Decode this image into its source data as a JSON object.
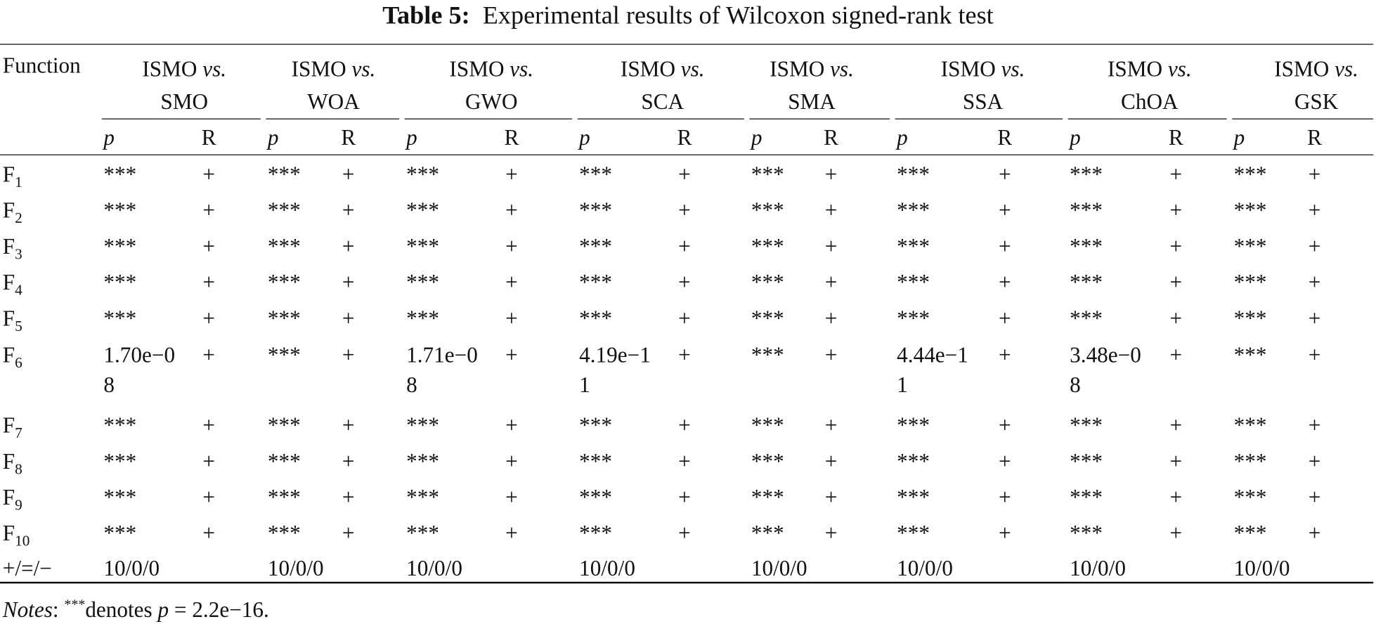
{
  "caption": {
    "label": "Table 5:",
    "text": "Experimental results of Wilcoxon signed-rank test"
  },
  "header": {
    "function": "Function",
    "groups": [
      {
        "first": "ISMO",
        "vs": "vs.",
        "second": "SMO"
      },
      {
        "first": "ISMO",
        "vs": "vs.",
        "second": "WOA"
      },
      {
        "first": "ISMO",
        "vs": "vs.",
        "second": "GWO"
      },
      {
        "first": "ISMO",
        "vs": "vs.",
        "second": "SCA"
      },
      {
        "first": "ISMO",
        "vs": "vs.",
        "second": "SMA"
      },
      {
        "first": "ISMO",
        "vs": "vs.",
        "second": "SSA"
      },
      {
        "first": "ISMO",
        "vs": "vs.",
        "second": "ChOA"
      },
      {
        "first": "ISMO",
        "vs": "vs.",
        "second": "GSK"
      }
    ],
    "sub": [
      [
        "p",
        "R"
      ],
      [
        "p",
        "R"
      ],
      [
        "p",
        "R"
      ],
      [
        "p",
        "R"
      ],
      [
        "p",
        "R"
      ],
      [
        "p",
        "R"
      ],
      [
        "p",
        "R"
      ],
      [
        "p",
        "R"
      ]
    ]
  },
  "rows": [
    {
      "base": "F",
      "sub": "1",
      "cells": [
        [
          "***",
          "+"
        ],
        [
          "***",
          "+"
        ],
        [
          "***",
          "+"
        ],
        [
          "***",
          "+"
        ],
        [
          "***",
          "+"
        ],
        [
          "***",
          "+"
        ],
        [
          "***",
          "+"
        ],
        [
          "***",
          "+"
        ]
      ]
    },
    {
      "base": "F",
      "sub": "2",
      "cells": [
        [
          "***",
          "+"
        ],
        [
          "***",
          "+"
        ],
        [
          "***",
          "+"
        ],
        [
          "***",
          "+"
        ],
        [
          "***",
          "+"
        ],
        [
          "***",
          "+"
        ],
        [
          "***",
          "+"
        ],
        [
          "***",
          "+"
        ]
      ]
    },
    {
      "base": "F",
      "sub": "3",
      "cells": [
        [
          "***",
          "+"
        ],
        [
          "***",
          "+"
        ],
        [
          "***",
          "+"
        ],
        [
          "***",
          "+"
        ],
        [
          "***",
          "+"
        ],
        [
          "***",
          "+"
        ],
        [
          "***",
          "+"
        ],
        [
          "***",
          "+"
        ]
      ]
    },
    {
      "base": "F",
      "sub": "4",
      "cells": [
        [
          "***",
          "+"
        ],
        [
          "***",
          "+"
        ],
        [
          "***",
          "+"
        ],
        [
          "***",
          "+"
        ],
        [
          "***",
          "+"
        ],
        [
          "***",
          "+"
        ],
        [
          "***",
          "+"
        ],
        [
          "***",
          "+"
        ]
      ]
    },
    {
      "base": "F",
      "sub": "5",
      "cells": [
        [
          "***",
          "+"
        ],
        [
          "***",
          "+"
        ],
        [
          "***",
          "+"
        ],
        [
          "***",
          "+"
        ],
        [
          "***",
          "+"
        ],
        [
          "***",
          "+"
        ],
        [
          "***",
          "+"
        ],
        [
          "***",
          "+"
        ]
      ]
    },
    {
      "base": "F",
      "sub": "6",
      "cells": [
        [
          "1.70e−08",
          "+"
        ],
        [
          "***",
          "+"
        ],
        [
          "1.71e−08",
          "+"
        ],
        [
          "4.19e−11",
          "+"
        ],
        [
          "***",
          "+"
        ],
        [
          "4.44e−11",
          "+"
        ],
        [
          "3.48e−08",
          "+"
        ],
        [
          "***",
          "+"
        ]
      ]
    },
    {
      "base": "F",
      "sub": "7",
      "cells": [
        [
          "***",
          "+"
        ],
        [
          "***",
          "+"
        ],
        [
          "***",
          "+"
        ],
        [
          "***",
          "+"
        ],
        [
          "***",
          "+"
        ],
        [
          "***",
          "+"
        ],
        [
          "***",
          "+"
        ],
        [
          "***",
          "+"
        ]
      ]
    },
    {
      "base": "F",
      "sub": "8",
      "cells": [
        [
          "***",
          "+"
        ],
        [
          "***",
          "+"
        ],
        [
          "***",
          "+"
        ],
        [
          "***",
          "+"
        ],
        [
          "***",
          "+"
        ],
        [
          "***",
          "+"
        ],
        [
          "***",
          "+"
        ],
        [
          "***",
          "+"
        ]
      ]
    },
    {
      "base": "F",
      "sub": "9",
      "cells": [
        [
          "***",
          "+"
        ],
        [
          "***",
          "+"
        ],
        [
          "***",
          "+"
        ],
        [
          "***",
          "+"
        ],
        [
          "***",
          "+"
        ],
        [
          "***",
          "+"
        ],
        [
          "***",
          "+"
        ],
        [
          "***",
          "+"
        ]
      ]
    },
    {
      "base": "F",
      "sub": "10",
      "cells": [
        [
          "***",
          "+"
        ],
        [
          "***",
          "+"
        ],
        [
          "***",
          "+"
        ],
        [
          "***",
          "+"
        ],
        [
          "***",
          "+"
        ],
        [
          "***",
          "+"
        ],
        [
          "***",
          "+"
        ],
        [
          "***",
          "+"
        ]
      ]
    }
  ],
  "summary": {
    "label": "+/=/−",
    "values": [
      "10/0/0",
      "10/0/0",
      "10/0/0",
      "10/0/0",
      "10/0/0",
      "10/0/0",
      "10/0/0",
      "10/0/0"
    ]
  },
  "notes": {
    "label": "Notes",
    "colon": ":",
    "stars": "***",
    "text": "denotes",
    "p": "p",
    "rest": "= 2.2e−16."
  }
}
